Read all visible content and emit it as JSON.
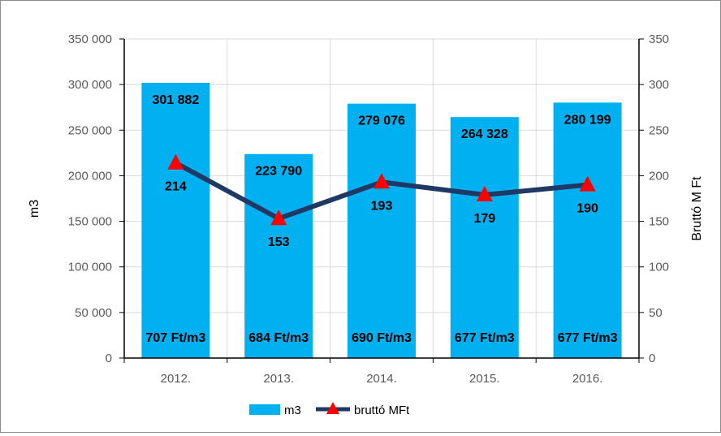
{
  "chart_data": {
    "type": "bar",
    "categories": [
      "2012.",
      "2013.",
      "2014.",
      "2015.",
      "2016."
    ],
    "series": [
      {
        "name": "m3",
        "type": "bar",
        "axis": "left",
        "values": [
          301882,
          223790,
          279076,
          264328,
          280199
        ],
        "value_labels": [
          "301 882",
          "223 790",
          "279 076",
          "264 328",
          "280 199"
        ],
        "base_labels": [
          "707 Ft/m3",
          "684 Ft/m3",
          "690 Ft/m3",
          "677 Ft/m3",
          "677 Ft/m3"
        ],
        "color": "#00B0F0"
      },
      {
        "name": "bruttó MFt",
        "type": "line",
        "axis": "right",
        "values": [
          214,
          153,
          193,
          179,
          190
        ],
        "value_labels": [
          "214",
          "153",
          "193",
          "179",
          "190"
        ],
        "line_color": "#1F3864",
        "marker": "triangle",
        "marker_color": "#FF0000"
      }
    ],
    "y_left": {
      "label": "m3",
      "range": [
        0,
        350000
      ],
      "ticks": [
        0,
        50000,
        100000,
        150000,
        200000,
        250000,
        300000,
        350000
      ],
      "tick_labels": [
        "0",
        "50 000",
        "100 000",
        "150 000",
        "200 000",
        "250 000",
        "300 000",
        "350 000"
      ]
    },
    "y_right": {
      "label": "Bruttó M Ft",
      "range": [
        0,
        350
      ],
      "ticks": [
        0,
        50,
        100,
        150,
        200,
        250,
        300,
        350
      ],
      "tick_labels": [
        "0",
        "50",
        "100",
        "150",
        "200",
        "250",
        "300",
        "350"
      ]
    },
    "grid": true,
    "legend": "bottom"
  }
}
